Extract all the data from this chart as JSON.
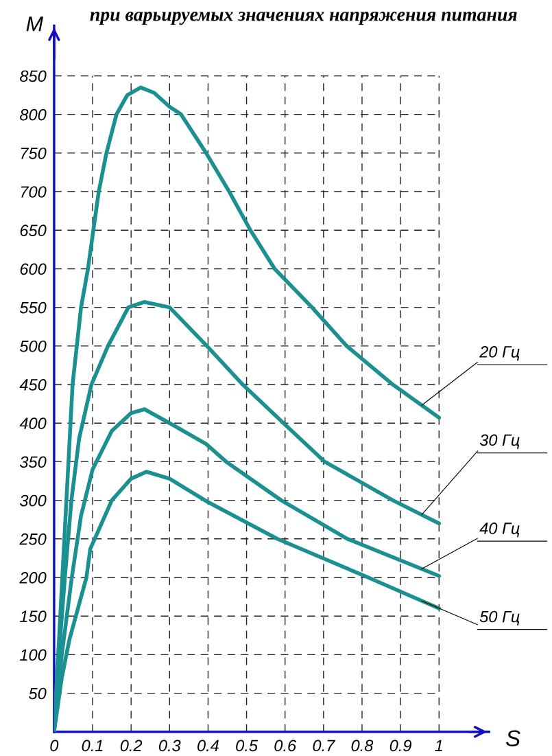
{
  "chart_data": {
    "type": "line",
    "title": "при варьируемых значениях напряжения питания",
    "xlabel": "S",
    "ylabel": "M",
    "xlim": [
      0,
      1.13
    ],
    "ylim": [
      0,
      915
    ],
    "xticks": [
      0,
      0.1,
      0.2,
      0.3,
      0.4,
      0.5,
      0.6,
      0.7,
      0.8,
      0.9,
      1
    ],
    "yticks": [
      50,
      100,
      150,
      200,
      250,
      300,
      350,
      400,
      450,
      500,
      550,
      600,
      650,
      700,
      750,
      800,
      850
    ],
    "grid": true,
    "marker": "none",
    "line_style": "solid",
    "series": [
      {
        "name": "20 Гц",
        "color": "#1a9090",
        "x": [
          0,
          0.016,
          0.032,
          0.048,
          0.059,
          0.07,
          0.088,
          0.1,
          0.116,
          0.136,
          0.162,
          0.19,
          0.225,
          0.26,
          0.3,
          0.33,
          0.395,
          0.455,
          0.51,
          0.573,
          0.67,
          0.76,
          0.88,
          1
        ],
        "values": [
          0,
          150,
          300,
          450,
          500,
          550,
          600,
          643,
          700,
          750,
          800,
          825,
          835,
          828,
          810,
          800,
          750,
          700,
          650,
          600,
          550,
          500,
          450,
          407
        ]
      },
      {
        "name": "30 Гц",
        "color": "#1a9090",
        "x": [
          0,
          0.014,
          0.028,
          0.045,
          0.065,
          0.097,
          0.14,
          0.193,
          0.234,
          0.3,
          0.397,
          0.49,
          0.596,
          0.703,
          0.88,
          1
        ],
        "values": [
          0,
          110,
          200,
          300,
          380,
          450,
          500,
          550,
          557,
          550,
          500,
          450,
          400,
          350,
          300,
          270
        ]
      },
      {
        "name": "40 Гц",
        "color": "#1a9090",
        "x": [
          0,
          0.02,
          0.046,
          0.07,
          0.1,
          0.15,
          0.2,
          0.235,
          0.3,
          0.395,
          0.447,
          0.59,
          0.762,
          1
        ],
        "values": [
          0,
          100,
          200,
          280,
          340,
          390,
          413,
          418,
          400,
          373,
          350,
          300,
          250,
          202
        ]
      },
      {
        "name": "50 Гц",
        "color": "#1a9090",
        "x": [
          0,
          0.02,
          0.04,
          0.084,
          0.094,
          0.15,
          0.2,
          0.24,
          0.3,
          0.395,
          0.58,
          0.816,
          1
        ],
        "values": [
          0,
          70,
          120,
          200,
          237,
          300,
          328,
          337,
          328,
          299,
          250,
          200,
          160
        ]
      }
    ]
  }
}
